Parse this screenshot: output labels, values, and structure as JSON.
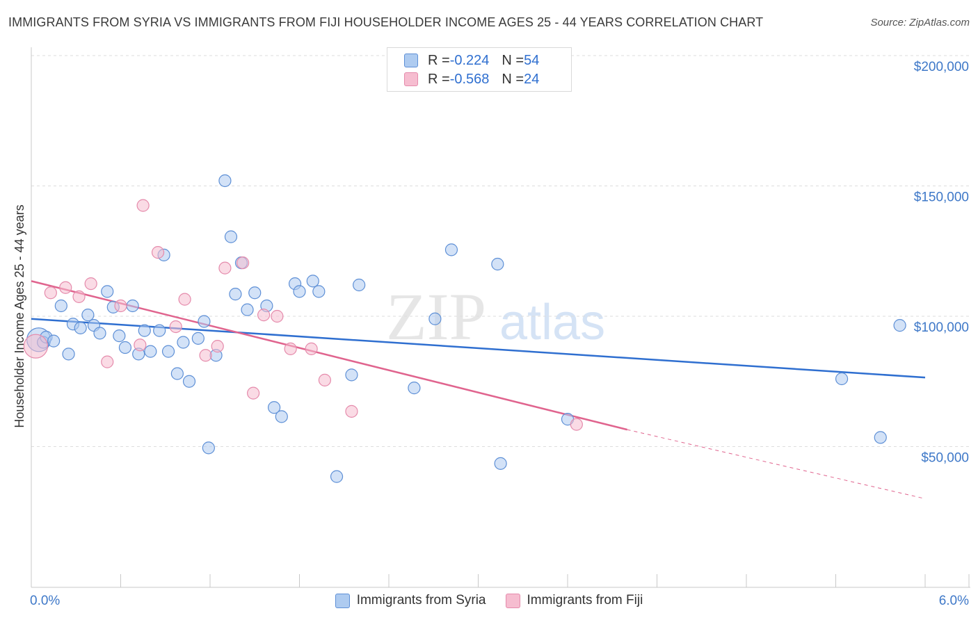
{
  "title": "IMMIGRANTS FROM SYRIA VS IMMIGRANTS FROM FIJI HOUSEHOLDER INCOME AGES 25 - 44 YEARS CORRELATION CHART",
  "source": "Source: ZipAtlas.com",
  "watermark": {
    "zip": "ZIP",
    "atlas": "atlas"
  },
  "legend": {
    "rows": [
      {
        "r_label": "R = ",
        "r_value": "-0.224",
        "n_label": "N = ",
        "n_value": "54"
      },
      {
        "r_label": "R = ",
        "r_value": "-0.568",
        "n_label": "N = ",
        "n_value": "24"
      }
    ]
  },
  "colors": {
    "syria_fill": "#aecbf0",
    "syria_stroke": "#5d8fd6",
    "syria_line": "#2f6fd0",
    "fiji_fill": "#f6bdd0",
    "fiji_stroke": "#e58aab",
    "fiji_line": "#e0648e",
    "grid": "#dddddd",
    "axis_label": "#3e78c8"
  },
  "chart_data": {
    "type": "scatter",
    "title": "IMMIGRANTS FROM SYRIA VS IMMIGRANTS FROM FIJI HOUSEHOLDER INCOME AGES 25 - 44 YEARS CORRELATION CHART",
    "xlabel": "",
    "ylabel": "Householder Income Ages 25 - 44 years",
    "xlim": [
      0,
      6
    ],
    "ylim": [
      0,
      200000
    ],
    "x_tick_labels": [
      "0.0%",
      "6.0%"
    ],
    "y_ticks": [
      {
        "value": 50000,
        "label": "$50,000"
      },
      {
        "value": 100000,
        "label": "$100,000"
      },
      {
        "value": 150000,
        "label": "$150,000"
      },
      {
        "value": 200000,
        "label": "$200,000"
      }
    ],
    "grid": true,
    "series": [
      {
        "name": "Immigrants from Syria",
        "r": -0.224,
        "n": 54,
        "trend": {
          "x": [
            0.0,
            6.0
          ],
          "y": [
            103000,
            80500
          ]
        },
        "points": [
          {
            "x": 0.05,
            "y": 95000,
            "big": true
          },
          {
            "x": 0.08,
            "y": 94000
          },
          {
            "x": 0.1,
            "y": 96000
          },
          {
            "x": 0.15,
            "y": 94500
          },
          {
            "x": 0.25,
            "y": 89500
          },
          {
            "x": 0.2,
            "y": 108000
          },
          {
            "x": 0.28,
            "y": 101000
          },
          {
            "x": 0.33,
            "y": 99500
          },
          {
            "x": 0.38,
            "y": 104500
          },
          {
            "x": 0.42,
            "y": 100500
          },
          {
            "x": 0.46,
            "y": 97500
          },
          {
            "x": 0.51,
            "y": 113500
          },
          {
            "x": 0.55,
            "y": 107500
          },
          {
            "x": 0.59,
            "y": 96500
          },
          {
            "x": 0.63,
            "y": 92000
          },
          {
            "x": 0.68,
            "y": 108000
          },
          {
            "x": 0.72,
            "y": 89500
          },
          {
            "x": 0.76,
            "y": 98500
          },
          {
            "x": 0.8,
            "y": 90500
          },
          {
            "x": 0.86,
            "y": 98500
          },
          {
            "x": 0.89,
            "y": 127500
          },
          {
            "x": 0.92,
            "y": 90500
          },
          {
            "x": 0.98,
            "y": 82000
          },
          {
            "x": 1.02,
            "y": 94000
          },
          {
            "x": 1.06,
            "y": 79000
          },
          {
            "x": 1.12,
            "y": 95500
          },
          {
            "x": 1.16,
            "y": 102000
          },
          {
            "x": 1.19,
            "y": 53500
          },
          {
            "x": 1.24,
            "y": 89000
          },
          {
            "x": 1.3,
            "y": 156000
          },
          {
            "x": 1.34,
            "y": 134500
          },
          {
            "x": 1.37,
            "y": 112500
          },
          {
            "x": 1.41,
            "y": 124500
          },
          {
            "x": 1.45,
            "y": 106500
          },
          {
            "x": 1.5,
            "y": 113000
          },
          {
            "x": 1.58,
            "y": 108000
          },
          {
            "x": 1.63,
            "y": 69000
          },
          {
            "x": 1.68,
            "y": 65500
          },
          {
            "x": 1.77,
            "y": 116500
          },
          {
            "x": 1.8,
            "y": 113500
          },
          {
            "x": 1.89,
            "y": 117500
          },
          {
            "x": 1.93,
            "y": 113500
          },
          {
            "x": 2.05,
            "y": 42500
          },
          {
            "x": 2.15,
            "y": 81500
          },
          {
            "x": 2.2,
            "y": 116000
          },
          {
            "x": 2.57,
            "y": 76500
          },
          {
            "x": 2.71,
            "y": 103000
          },
          {
            "x": 2.82,
            "y": 129500
          },
          {
            "x": 3.13,
            "y": 124000
          },
          {
            "x": 3.15,
            "y": 47500
          },
          {
            "x": 3.6,
            "y": 64500
          },
          {
            "x": 5.44,
            "y": 80000
          },
          {
            "x": 5.7,
            "y": 57500
          },
          {
            "x": 5.83,
            "y": 100500
          }
        ]
      },
      {
        "name": "Immigrants from Fiji",
        "r": -0.568,
        "n": 24,
        "trend": {
          "x": [
            0.0,
            4.0
          ],
          "y": [
            117500,
            60500
          ],
          "dashed_to": {
            "x": 6.0,
            "y": 34000
          }
        },
        "points": [
          {
            "x": 0.03,
            "y": 92500,
            "big": true
          },
          {
            "x": 0.13,
            "y": 113000
          },
          {
            "x": 0.23,
            "y": 115000
          },
          {
            "x": 0.32,
            "y": 111500
          },
          {
            "x": 0.4,
            "y": 116500
          },
          {
            "x": 0.51,
            "y": 86500
          },
          {
            "x": 0.6,
            "y": 108000
          },
          {
            "x": 0.73,
            "y": 93000
          },
          {
            "x": 0.75,
            "y": 146500
          },
          {
            "x": 0.85,
            "y": 128500
          },
          {
            "x": 0.97,
            "y": 100000
          },
          {
            "x": 1.03,
            "y": 110500
          },
          {
            "x": 1.17,
            "y": 89000
          },
          {
            "x": 1.25,
            "y": 92500
          },
          {
            "x": 1.3,
            "y": 122500
          },
          {
            "x": 1.42,
            "y": 124500
          },
          {
            "x": 1.49,
            "y": 74500
          },
          {
            "x": 1.56,
            "y": 104500
          },
          {
            "x": 1.65,
            "y": 104000
          },
          {
            "x": 1.74,
            "y": 91500
          },
          {
            "x": 1.88,
            "y": 91500
          },
          {
            "x": 1.97,
            "y": 79500
          },
          {
            "x": 2.15,
            "y": 67500
          },
          {
            "x": 3.66,
            "y": 62500
          }
        ]
      }
    ]
  }
}
